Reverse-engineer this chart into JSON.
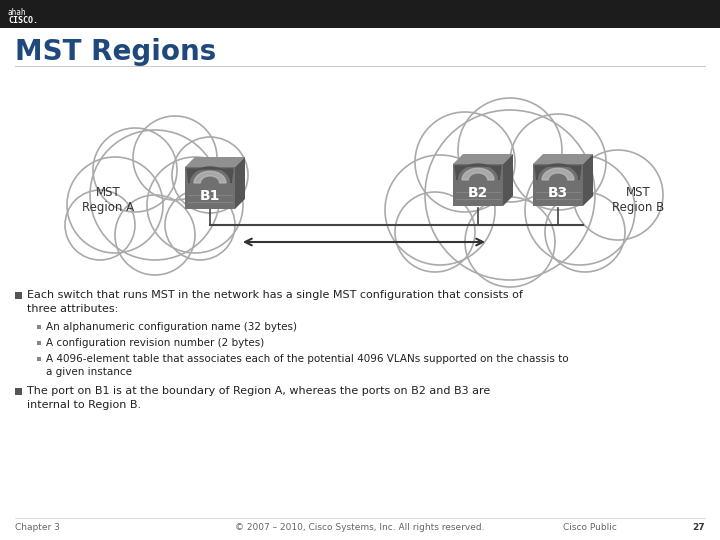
{
  "title": "MST Regions",
  "bg_color": "#FFFFFF",
  "title_color": "#1F497D",
  "title_fontsize": 20,
  "bullet1_line1": "Each switch that runs MST in the network has a single MST configuration that consists of",
  "bullet1_line2": "three attributes:",
  "sub_bullet1": "An alphanumeric configuration name (32 bytes)",
  "sub_bullet2": "A configuration revision number (2 bytes)",
  "sub_bullet3a": "A 4096-element table that associates each of the potential 4096 VLANs supported on the chassis to",
  "sub_bullet3b": "a given instance",
  "bullet2_line1": "The port on B1 is at the boundary of Region A, whereas the ports on B2 and B3 are",
  "bullet2_line2": "internal to Region B.",
  "footer_left": "Chapter 3",
  "footer_center": "© 2007 – 2010, Cisco Systems, Inc. All rights reserved.",
  "footer_right": "Cisco Public",
  "footer_page": "27",
  "region_a_label": "MST\nRegion A",
  "region_b_label": "MST\nRegion B",
  "b1_label": "B1",
  "b2_label": "B2",
  "b3_label": "B3",
  "header_dark_color": "#1C1C1C",
  "cisco_bar_width": 120
}
